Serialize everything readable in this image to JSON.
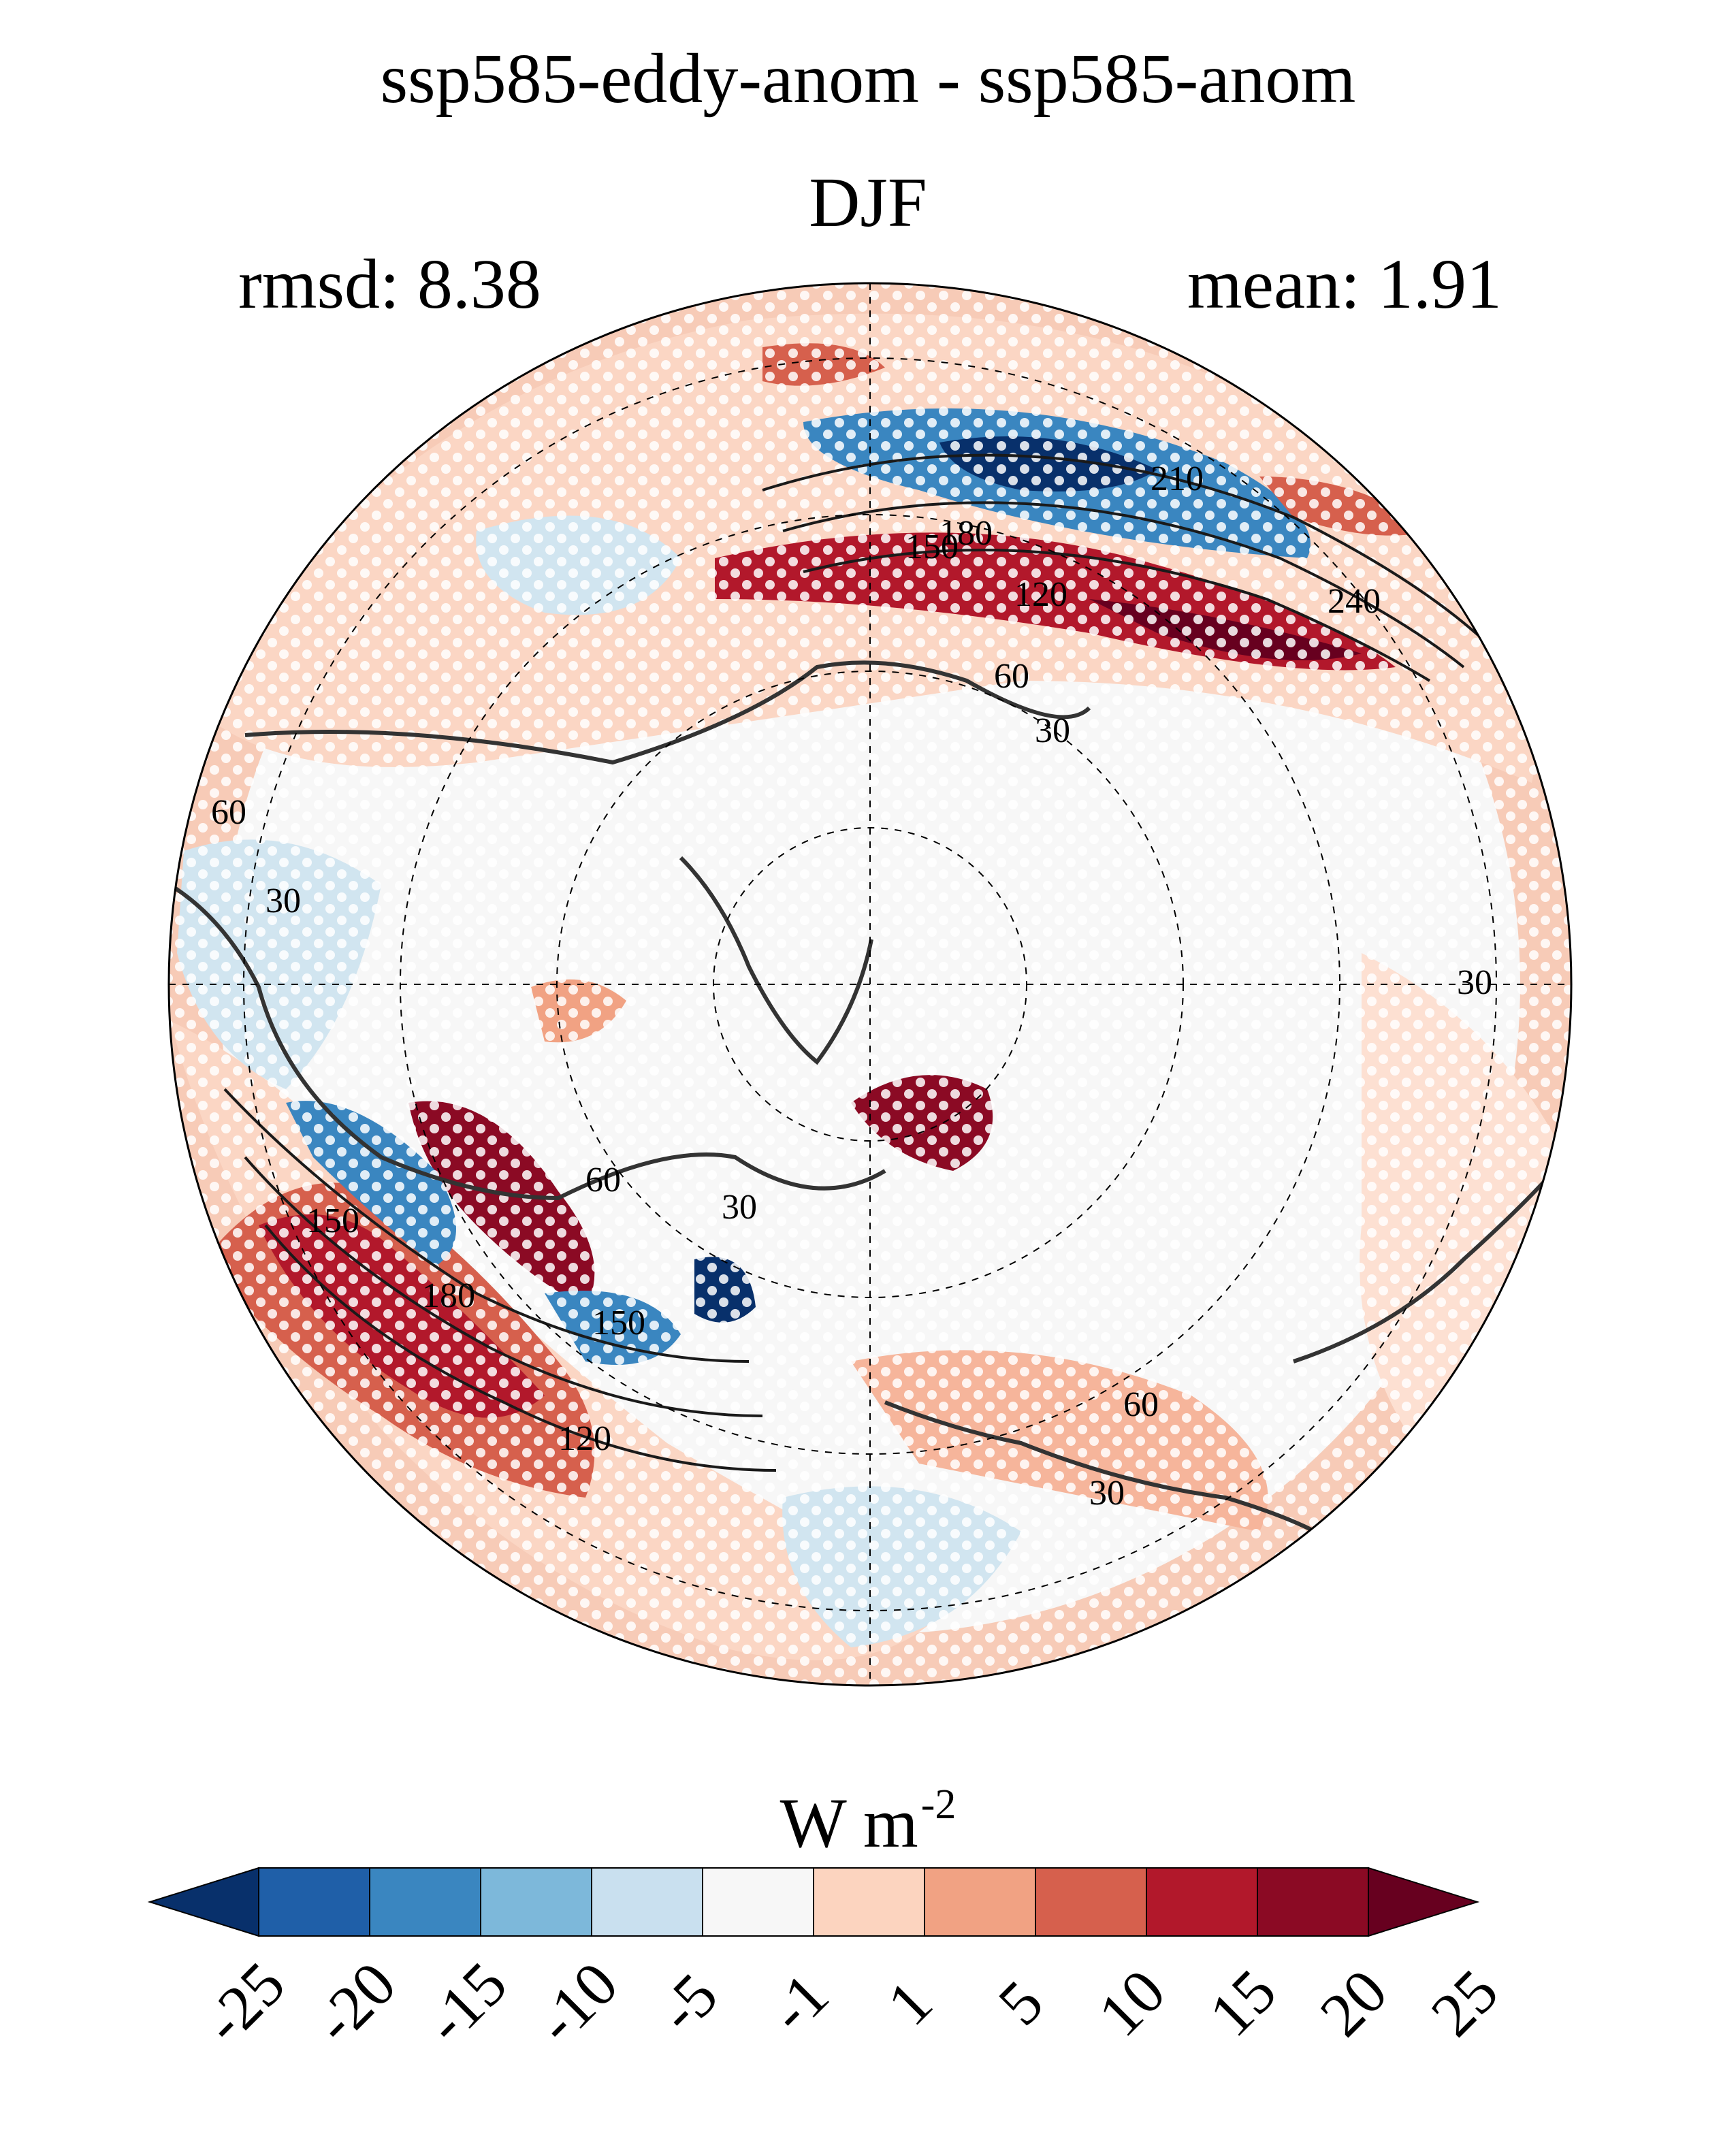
{
  "title_line1": "ssp585-eddy-anom - ssp585-anom",
  "title_line2": "DJF",
  "stats": {
    "rmsd": "rmsd: 8.38",
    "mean": "mean: 1.91"
  },
  "projection": "north-polar-stereographic",
  "colorbar": {
    "units_base": "W m",
    "units_exp": "-2",
    "levels": [
      "-25",
      "-20",
      "-15",
      "-10",
      "-5",
      "-1",
      "1",
      "5",
      "10",
      "15",
      "20",
      "25"
    ],
    "colors": [
      "#08306b",
      "#1f5fa8",
      "#3a86c0",
      "#7db8da",
      "#c9e0ef",
      "#f7f7f7",
      "#fcd4bf",
      "#f1a283",
      "#d6604d",
      "#b2182b",
      "#8b0a24",
      "#67001f"
    ],
    "extend": "both"
  },
  "contour_labels": [
    "210",
    "180",
    "150",
    "120",
    "240",
    "60",
    "30",
    "60",
    "30",
    "30",
    "150",
    "180",
    "150",
    "120",
    "60",
    "30",
    "60",
    "30"
  ],
  "stippling": "white dots mark non-significant regions"
}
